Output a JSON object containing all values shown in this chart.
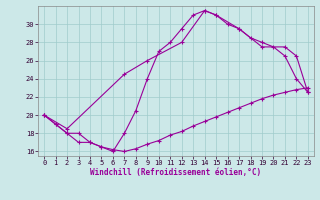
{
  "xlabel": "Windchill (Refroidissement éolien,°C)",
  "bg_color": "#cce8e8",
  "grid_color": "#a0cccc",
  "line_color": "#990099",
  "xlim": [
    -0.5,
    23.5
  ],
  "ylim": [
    15.5,
    32
  ],
  "xticks": [
    0,
    1,
    2,
    3,
    4,
    5,
    6,
    7,
    8,
    9,
    10,
    11,
    12,
    13,
    14,
    15,
    16,
    17,
    18,
    19,
    20,
    21,
    22,
    23
  ],
  "yticks": [
    16,
    18,
    20,
    22,
    24,
    26,
    28,
    30
  ],
  "curve1_x": [
    0,
    1,
    2,
    3,
    4,
    5,
    6,
    7,
    8,
    9,
    10,
    11,
    12,
    13,
    14,
    15,
    16,
    17,
    18,
    19,
    20,
    21,
    22,
    23
  ],
  "curve1_y": [
    20,
    19,
    18,
    17,
    17,
    16.5,
    16,
    18,
    20.5,
    24,
    27,
    28,
    29.5,
    31,
    31.5,
    31,
    30,
    29.5,
    28.5,
    28,
    27.5,
    26.5,
    24,
    22.5
  ],
  "curve2_x": [
    0,
    1,
    2,
    3,
    4,
    5,
    6,
    7,
    8,
    9,
    10,
    11,
    12,
    13,
    14,
    15,
    16,
    17,
    18,
    19,
    20,
    21,
    22,
    23
  ],
  "curve2_y": [
    20,
    19,
    18,
    18,
    17,
    16.5,
    16.2,
    16,
    16.3,
    16.8,
    17.2,
    17.8,
    18.2,
    18.8,
    19.3,
    19.8,
    20.3,
    20.8,
    21.3,
    21.8,
    22.2,
    22.5,
    22.8,
    23.0
  ],
  "curve3_x": [
    0,
    2,
    7,
    9,
    12,
    14,
    15,
    17,
    19,
    21,
    22,
    23
  ],
  "curve3_y": [
    20,
    18.5,
    24.5,
    26,
    28,
    31.5,
    31,
    29.5,
    27.5,
    27.5,
    26.5,
    22.5
  ]
}
